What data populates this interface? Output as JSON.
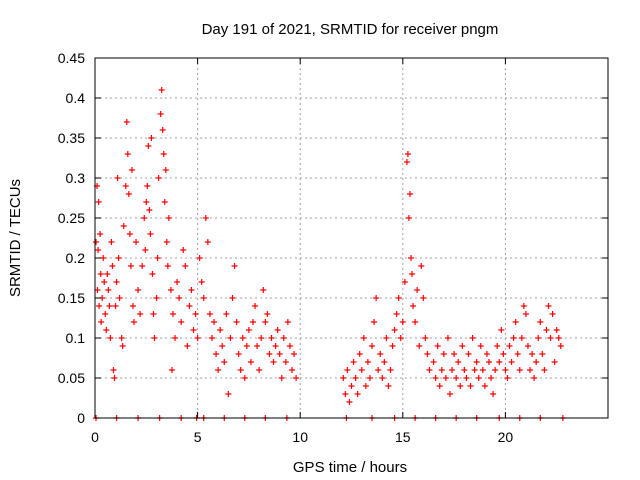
{
  "chart_data": {
    "type": "scatter",
    "title": "Day 191 of 2021, SRMTID for receiver pngm",
    "xlabel": "GPS time / hours",
    "ylabel": "SRMTID / TECUs",
    "xlim": [
      0,
      25
    ],
    "ylim": [
      0,
      0.45
    ],
    "xticks": [
      0,
      5,
      10,
      15,
      20
    ],
    "yticks": [
      0,
      0.05,
      0.1,
      0.15,
      0.2,
      0.25,
      0.3,
      0.35,
      0.4,
      0.45
    ],
    "grid": true,
    "marker": "+",
    "color": "#ff0000",
    "series": [
      {
        "name": "SRMTID",
        "points": [
          [
            0.05,
            0.22
          ],
          [
            0.1,
            0.29
          ],
          [
            0.12,
            0.16
          ],
          [
            0.15,
            0.21
          ],
          [
            0.18,
            0.27
          ],
          [
            0.2,
            0.14
          ],
          [
            0.25,
            0.23
          ],
          [
            0.28,
            0.18
          ],
          [
            0.3,
            0.12
          ],
          [
            0.35,
            0.15
          ],
          [
            0.4,
            0.2
          ],
          [
            0.45,
            0.17
          ],
          [
            0.5,
            0.13
          ],
          [
            0.55,
            0.11
          ],
          [
            0.6,
            0.18
          ],
          [
            0.65,
            0.16
          ],
          [
            0.7,
            0.14
          ],
          [
            0.75,
            0.1
          ],
          [
            0.8,
            0.22
          ],
          [
            0.85,
            0.19
          ],
          [
            0.9,
            0.06
          ],
          [
            0.95,
            0.05
          ],
          [
            1.0,
            0.14
          ],
          [
            1.05,
            0.17
          ],
          [
            1.1,
            0.3
          ],
          [
            1.15,
            0.2
          ],
          [
            1.2,
            0.15
          ],
          [
            1.3,
            0.1
          ],
          [
            1.35,
            0.09
          ],
          [
            1.4,
            0.24
          ],
          [
            1.5,
            0.29
          ],
          [
            1.55,
            0.37
          ],
          [
            1.6,
            0.33
          ],
          [
            1.65,
            0.28
          ],
          [
            1.7,
            0.23
          ],
          [
            1.75,
            0.19
          ],
          [
            1.8,
            0.31
          ],
          [
            1.85,
            0.14
          ],
          [
            1.9,
            0.12
          ],
          [
            2.0,
            0.22
          ],
          [
            2.1,
            0.16
          ],
          [
            2.2,
            0.13
          ],
          [
            2.3,
            0.19
          ],
          [
            2.4,
            0.25
          ],
          [
            2.45,
            0.21
          ],
          [
            2.5,
            0.27
          ],
          [
            2.55,
            0.29
          ],
          [
            2.6,
            0.34
          ],
          [
            2.65,
            0.26
          ],
          [
            2.7,
            0.23
          ],
          [
            2.75,
            0.35
          ],
          [
            2.8,
            0.18
          ],
          [
            2.85,
            0.13
          ],
          [
            2.9,
            0.1
          ],
          [
            3.0,
            0.15
          ],
          [
            3.05,
            0.2
          ],
          [
            3.1,
            0.3
          ],
          [
            3.2,
            0.38
          ],
          [
            3.25,
            0.41
          ],
          [
            3.3,
            0.36
          ],
          [
            3.35,
            0.33
          ],
          [
            3.4,
            0.27
          ],
          [
            3.45,
            0.31
          ],
          [
            3.5,
            0.22
          ],
          [
            3.55,
            0.19
          ],
          [
            3.6,
            0.25
          ],
          [
            3.7,
            0.16
          ],
          [
            3.75,
            0.06
          ],
          [
            3.8,
            0.13
          ],
          [
            3.9,
            0.1
          ],
          [
            4.0,
            0.17
          ],
          [
            4.1,
            0.15
          ],
          [
            4.2,
            0.12
          ],
          [
            4.3,
            0.21
          ],
          [
            4.4,
            0.19
          ],
          [
            4.5,
            0.09
          ],
          [
            4.6,
            0.14
          ],
          [
            4.7,
            0.16
          ],
          [
            4.8,
            0.11
          ],
          [
            4.9,
            0.13
          ],
          [
            5.0,
            0.1
          ],
          [
            5.1,
            0.2
          ],
          [
            5.2,
            0.17
          ],
          [
            5.3,
            0.15
          ],
          [
            5.4,
            0.25
          ],
          [
            5.5,
            0.22
          ],
          [
            5.6,
            0.13
          ],
          [
            5.7,
            0.1
          ],
          [
            5.8,
            0.12
          ],
          [
            5.9,
            0.08
          ],
          [
            6.0,
            0.06
          ],
          [
            6.1,
            0.11
          ],
          [
            6.2,
            0.09
          ],
          [
            6.3,
            0.07
          ],
          [
            6.4,
            0.13
          ],
          [
            6.5,
            0.03
          ],
          [
            6.6,
            0.1
          ],
          [
            6.7,
            0.15
          ],
          [
            6.8,
            0.19
          ],
          [
            6.9,
            0.12
          ],
          [
            7.0,
            0.08
          ],
          [
            7.1,
            0.06
          ],
          [
            7.2,
            0.1
          ],
          [
            7.3,
            0.05
          ],
          [
            7.4,
            0.09
          ],
          [
            7.5,
            0.11
          ],
          [
            7.6,
            0.07
          ],
          [
            7.7,
            0.12
          ],
          [
            7.8,
            0.14
          ],
          [
            7.9,
            0.09
          ],
          [
            8.0,
            0.06
          ],
          [
            8.1,
            0.1
          ],
          [
            8.2,
            0.16
          ],
          [
            8.3,
            0.12
          ],
          [
            8.4,
            0.13
          ],
          [
            8.5,
            0.08
          ],
          [
            8.6,
            0.1
          ],
          [
            8.7,
            0.07
          ],
          [
            8.8,
            0.09
          ],
          [
            8.9,
            0.11
          ],
          [
            9.0,
            0.08
          ],
          [
            9.1,
            0.05
          ],
          [
            9.2,
            0.1
          ],
          [
            9.3,
            0.07
          ],
          [
            9.4,
            0.12
          ],
          [
            9.5,
            0.09
          ],
          [
            9.6,
            0.06
          ],
          [
            9.7,
            0.08
          ],
          [
            9.8,
            0.05
          ],
          [
            12.1,
            0.05
          ],
          [
            12.2,
            0.03
          ],
          [
            12.3,
            0.06
          ],
          [
            12.4,
            0.02
          ],
          [
            12.5,
            0.04
          ],
          [
            12.6,
            0.07
          ],
          [
            12.7,
            0.05
          ],
          [
            12.8,
            0.03
          ],
          [
            12.9,
            0.08
          ],
          [
            13.0,
            0.06
          ],
          [
            13.1,
            0.1
          ],
          [
            13.2,
            0.04
          ],
          [
            13.3,
            0.07
          ],
          [
            13.4,
            0.05
          ],
          [
            13.5,
            0.09
          ],
          [
            13.6,
            0.12
          ],
          [
            13.7,
            0.15
          ],
          [
            13.8,
            0.06
          ],
          [
            13.9,
            0.08
          ],
          [
            14.0,
            0.05
          ],
          [
            14.1,
            0.07
          ],
          [
            14.2,
            0.1
          ],
          [
            14.3,
            0.04
          ],
          [
            14.4,
            0.06
          ],
          [
            14.5,
            0.09
          ],
          [
            14.6,
            0.11
          ],
          [
            14.7,
            0.13
          ],
          [
            14.8,
            0.15
          ],
          [
            14.9,
            0.1
          ],
          [
            15.0,
            0.12
          ],
          [
            15.1,
            0.17
          ],
          [
            15.2,
            0.32
          ],
          [
            15.25,
            0.33
          ],
          [
            15.3,
            0.25
          ],
          [
            15.35,
            0.28
          ],
          [
            15.4,
            0.2
          ],
          [
            15.45,
            0.18
          ],
          [
            15.5,
            0.14
          ],
          [
            15.6,
            0.12
          ],
          [
            15.7,
            0.16
          ],
          [
            15.8,
            0.09
          ],
          [
            15.9,
            0.19
          ],
          [
            16.0,
            0.15
          ],
          [
            16.1,
            0.1
          ],
          [
            16.2,
            0.08
          ],
          [
            16.3,
            0.06
          ],
          [
            16.5,
            0.07
          ],
          [
            16.6,
            0.05
          ],
          [
            16.7,
            0.09
          ],
          [
            16.8,
            0.04
          ],
          [
            16.9,
            0.06
          ],
          [
            17.0,
            0.08
          ],
          [
            17.1,
            0.05
          ],
          [
            17.2,
            0.1
          ],
          [
            17.3,
            0.03
          ],
          [
            17.4,
            0.06
          ],
          [
            17.5,
            0.08
          ],
          [
            17.6,
            0.05
          ],
          [
            17.7,
            0.07
          ],
          [
            17.8,
            0.04
          ],
          [
            17.9,
            0.09
          ],
          [
            18.0,
            0.06
          ],
          [
            18.1,
            0.05
          ],
          [
            18.2,
            0.08
          ],
          [
            18.3,
            0.04
          ],
          [
            18.4,
            0.1
          ],
          [
            18.5,
            0.06
          ],
          [
            18.6,
            0.07
          ],
          [
            18.7,
            0.05
          ],
          [
            18.8,
            0.09
          ],
          [
            18.9,
            0.06
          ],
          [
            19.0,
            0.04
          ],
          [
            19.1,
            0.08
          ],
          [
            19.2,
            0.07
          ],
          [
            19.3,
            0.05
          ],
          [
            19.4,
            0.03
          ],
          [
            19.5,
            0.06
          ],
          [
            19.6,
            0.09
          ],
          [
            19.7,
            0.07
          ],
          [
            19.8,
            0.11
          ],
          [
            19.9,
            0.08
          ],
          [
            20.0,
            0.06
          ],
          [
            20.1,
            0.05
          ],
          [
            20.2,
            0.09
          ],
          [
            20.3,
            0.07
          ],
          [
            20.4,
            0.1
          ],
          [
            20.5,
            0.12
          ],
          [
            20.6,
            0.08
          ],
          [
            20.7,
            0.06
          ],
          [
            20.8,
            0.1
          ],
          [
            20.9,
            0.14
          ],
          [
            21.0,
            0.13
          ],
          [
            21.1,
            0.09
          ],
          [
            21.2,
            0.06
          ],
          [
            21.3,
            0.08
          ],
          [
            21.4,
            0.05
          ],
          [
            21.5,
            0.07
          ],
          [
            21.6,
            0.1
          ],
          [
            21.7,
            0.12
          ],
          [
            21.8,
            0.08
          ],
          [
            21.9,
            0.06
          ],
          [
            22.0,
            0.11
          ],
          [
            22.1,
            0.14
          ],
          [
            22.2,
            0.1
          ],
          [
            22.3,
            0.13
          ],
          [
            22.4,
            0.07
          ],
          [
            22.5,
            0.11
          ],
          [
            22.6,
            0.1
          ],
          [
            22.7,
            0.09
          ],
          [
            0.05,
            0.0
          ],
          [
            1.05,
            0.0
          ],
          [
            2.1,
            0.0
          ],
          [
            3.15,
            0.0
          ],
          [
            4.2,
            0.0
          ],
          [
            4.95,
            0.0
          ],
          [
            5.3,
            0.0
          ],
          [
            6.3,
            0.0
          ],
          [
            7.3,
            0.0
          ],
          [
            8.3,
            0.0
          ],
          [
            9.35,
            0.0
          ],
          [
            12.25,
            0.0
          ],
          [
            13.5,
            0.0
          ],
          [
            14.6,
            0.0
          ],
          [
            15.6,
            0.0
          ],
          [
            16.6,
            0.0
          ],
          [
            17.6,
            0.0
          ],
          [
            18.6,
            0.0
          ],
          [
            19.7,
            0.0
          ],
          [
            20.7,
            0.0
          ],
          [
            21.7,
            0.0
          ],
          [
            22.8,
            0.0
          ]
        ]
      }
    ]
  }
}
